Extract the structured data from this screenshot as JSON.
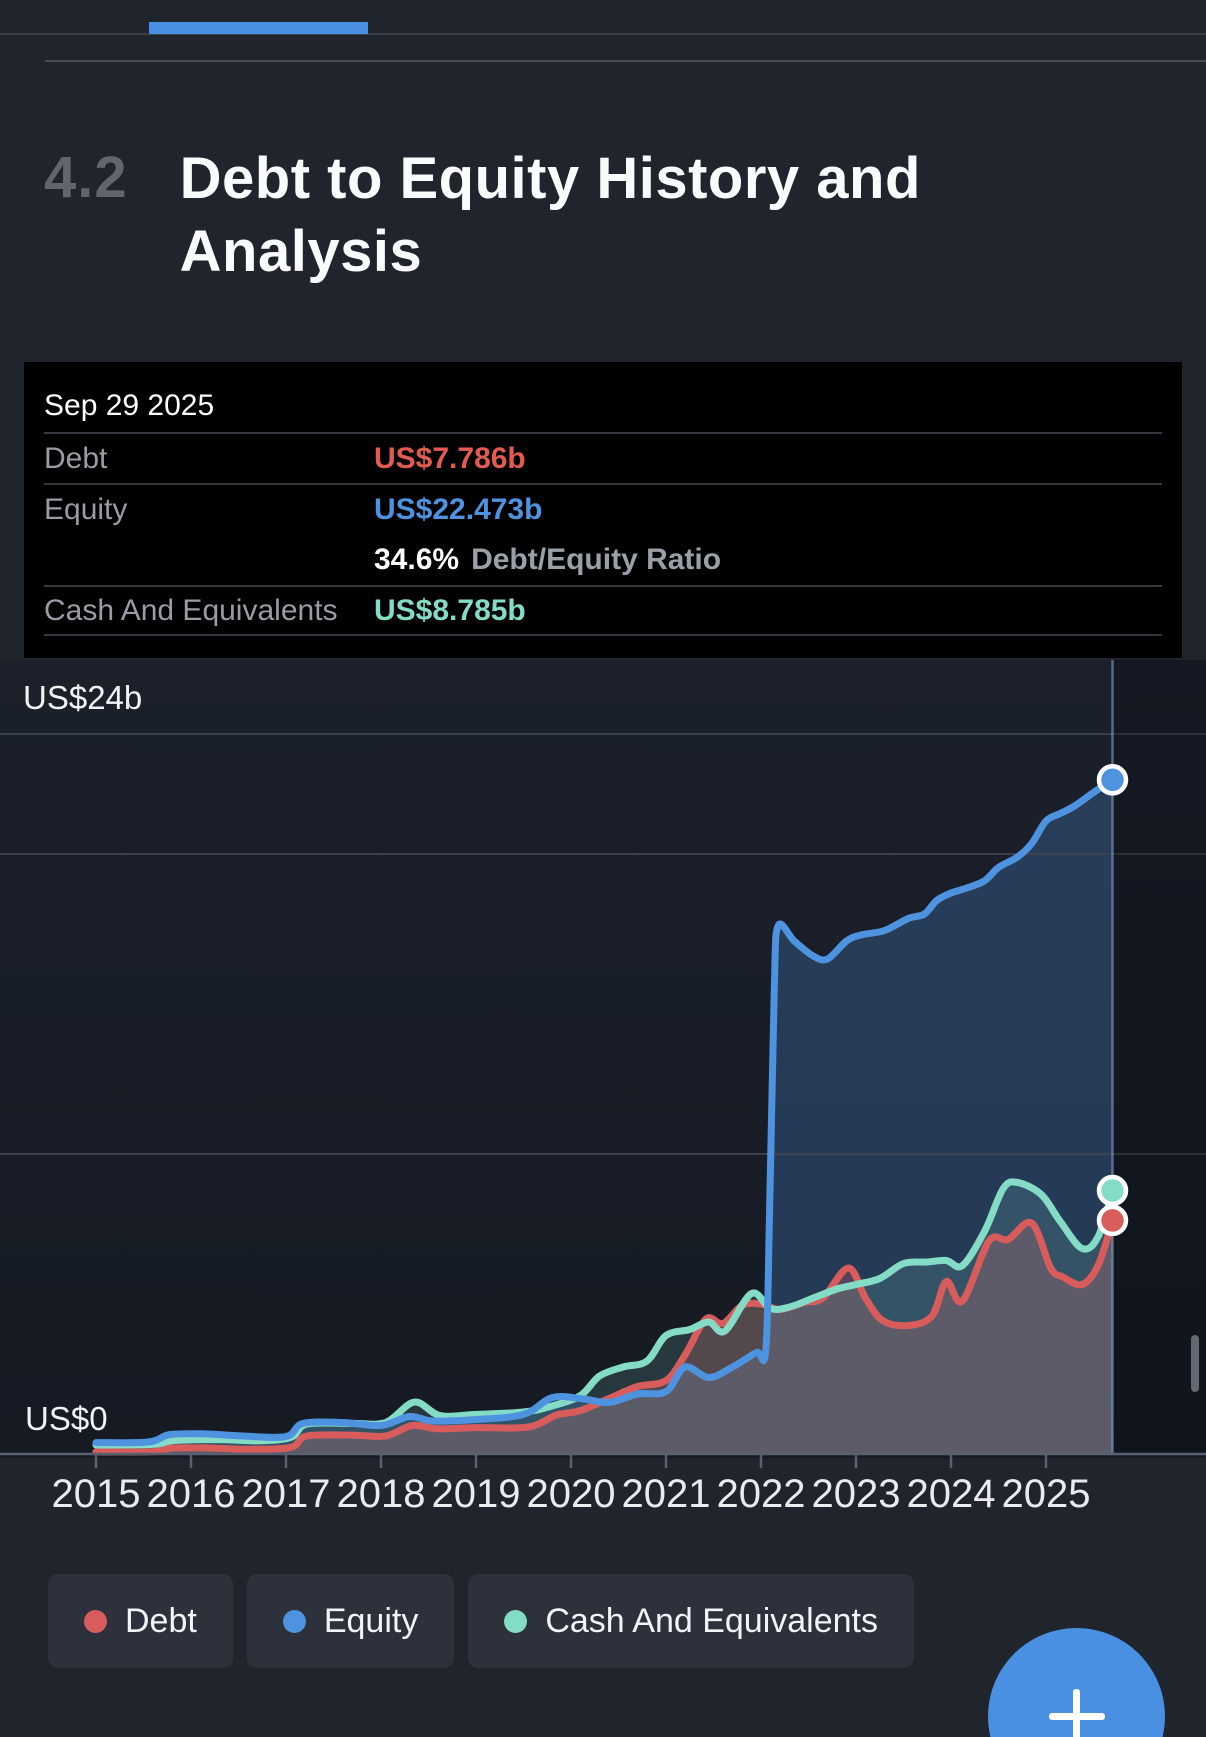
{
  "progress": {
    "color": "#4a90e2"
  },
  "section": {
    "number": "4.2",
    "title": "Debt to Equity History and Analysis"
  },
  "tooltip": {
    "date": "Sep 29 2025",
    "debt": {
      "label": "Debt",
      "value": "US$7.786b",
      "color": "#e25b52"
    },
    "equity": {
      "label": "Equity",
      "value": "US$22.473b",
      "color": "#4e93e0"
    },
    "ratio": {
      "value": "34.6%",
      "label": "Debt/Equity Ratio"
    },
    "cash": {
      "label": "Cash And Equivalents",
      "value": "US$8.785b",
      "color": "#84dcc7"
    }
  },
  "chart_data": {
    "type": "area",
    "title": "Debt to Equity History and Analysis",
    "unit": "US$ billions",
    "x_ticks": [
      "2015",
      "2016",
      "2017",
      "2018",
      "2019",
      "2020",
      "2021",
      "2022",
      "2023",
      "2024",
      "2025"
    ],
    "ylim": [
      0,
      26.5
    ],
    "grid": true,
    "gridline_values_b": [
      24,
      20,
      10
    ],
    "y_axis_labels": {
      "top": "US$24b",
      "zero": "US$0"
    },
    "hover": {
      "date": "Sep 29 2025",
      "x_year": 2025.7
    },
    "legend_position": "bottom",
    "series": [
      {
        "name": "Debt",
        "color": "#d95c5c",
        "fill_alpha": 0.28,
        "end_value_b": 7.786,
        "points": [
          [
            2015.0,
            0.07
          ],
          [
            2015.6,
            0.08
          ],
          [
            2015.8,
            0.2
          ],
          [
            2016.2,
            0.2
          ],
          [
            2016.6,
            0.16
          ],
          [
            2017.05,
            0.22
          ],
          [
            2017.22,
            0.6
          ],
          [
            2017.7,
            0.63
          ],
          [
            2018.05,
            0.6
          ],
          [
            2018.33,
            0.95
          ],
          [
            2018.6,
            0.84
          ],
          [
            2019.0,
            0.88
          ],
          [
            2019.55,
            0.9
          ],
          [
            2019.85,
            1.3
          ],
          [
            2020.1,
            1.45
          ],
          [
            2020.4,
            1.85
          ],
          [
            2020.7,
            2.25
          ],
          [
            2021.0,
            2.45
          ],
          [
            2021.2,
            3.3
          ],
          [
            2021.42,
            4.5
          ],
          [
            2021.6,
            4.35
          ],
          [
            2021.8,
            4.95
          ],
          [
            2022.0,
            5.0
          ],
          [
            2022.2,
            4.82
          ],
          [
            2022.45,
            5.05
          ],
          [
            2022.65,
            5.2
          ],
          [
            2022.92,
            6.2
          ],
          [
            2023.1,
            5.2
          ],
          [
            2023.28,
            4.45
          ],
          [
            2023.55,
            4.28
          ],
          [
            2023.8,
            4.6
          ],
          [
            2023.95,
            5.75
          ],
          [
            2024.12,
            5.1
          ],
          [
            2024.4,
            7.1
          ],
          [
            2024.6,
            7.15
          ],
          [
            2024.85,
            7.7
          ],
          [
            2025.05,
            6.2
          ],
          [
            2025.18,
            5.9
          ],
          [
            2025.38,
            5.65
          ],
          [
            2025.55,
            6.3
          ],
          [
            2025.7,
            7.786
          ]
        ]
      },
      {
        "name": "Equity",
        "color": "#4e93e0",
        "fill_alpha": 0.26,
        "end_value_b": 22.473,
        "points": [
          [
            2015.0,
            0.38
          ],
          [
            2015.55,
            0.4
          ],
          [
            2015.78,
            0.65
          ],
          [
            2016.15,
            0.67
          ],
          [
            2016.55,
            0.6
          ],
          [
            2017.0,
            0.58
          ],
          [
            2017.18,
            1.02
          ],
          [
            2017.6,
            1.05
          ],
          [
            2018.0,
            0.95
          ],
          [
            2018.3,
            1.25
          ],
          [
            2018.55,
            1.1
          ],
          [
            2019.0,
            1.15
          ],
          [
            2019.5,
            1.32
          ],
          [
            2019.8,
            1.88
          ],
          [
            2020.1,
            1.85
          ],
          [
            2020.4,
            1.72
          ],
          [
            2020.7,
            2.0
          ],
          [
            2021.0,
            2.08
          ],
          [
            2021.2,
            2.9
          ],
          [
            2021.45,
            2.55
          ],
          [
            2021.7,
            2.9
          ],
          [
            2021.95,
            3.38
          ],
          [
            2022.05,
            3.45
          ],
          [
            2022.09,
            8.0
          ],
          [
            2022.14,
            15.5
          ],
          [
            2022.18,
            17.6
          ],
          [
            2022.35,
            17.1
          ],
          [
            2022.55,
            16.6
          ],
          [
            2022.7,
            16.5
          ],
          [
            2022.9,
            17.1
          ],
          [
            2023.05,
            17.3
          ],
          [
            2023.3,
            17.45
          ],
          [
            2023.55,
            17.85
          ],
          [
            2023.72,
            18.0
          ],
          [
            2023.85,
            18.45
          ],
          [
            2024.0,
            18.7
          ],
          [
            2024.15,
            18.85
          ],
          [
            2024.35,
            19.1
          ],
          [
            2024.5,
            19.55
          ],
          [
            2024.7,
            19.9
          ],
          [
            2024.85,
            20.35
          ],
          [
            2025.0,
            21.1
          ],
          [
            2025.15,
            21.35
          ],
          [
            2025.3,
            21.6
          ],
          [
            2025.5,
            22.05
          ],
          [
            2025.7,
            22.473
          ]
        ]
      },
      {
        "name": "Cash And Equivalents",
        "color": "#84dcc7",
        "fill_alpha": 0.16,
        "end_value_b": 8.785,
        "points": [
          [
            2015.0,
            0.3
          ],
          [
            2015.6,
            0.32
          ],
          [
            2015.82,
            0.45
          ],
          [
            2016.3,
            0.48
          ],
          [
            2016.7,
            0.44
          ],
          [
            2017.05,
            0.55
          ],
          [
            2017.22,
            1.0
          ],
          [
            2017.7,
            1.02
          ],
          [
            2018.05,
            1.05
          ],
          [
            2018.35,
            1.73
          ],
          [
            2018.62,
            1.28
          ],
          [
            2019.0,
            1.32
          ],
          [
            2019.5,
            1.4
          ],
          [
            2019.8,
            1.6
          ],
          [
            2020.1,
            1.95
          ],
          [
            2020.3,
            2.6
          ],
          [
            2020.55,
            2.9
          ],
          [
            2020.8,
            3.1
          ],
          [
            2021.0,
            3.95
          ],
          [
            2021.25,
            4.15
          ],
          [
            2021.45,
            4.4
          ],
          [
            2021.62,
            4.1
          ],
          [
            2021.9,
            5.35
          ],
          [
            2022.1,
            4.85
          ],
          [
            2022.3,
            4.9
          ],
          [
            2022.55,
            5.2
          ],
          [
            2022.8,
            5.5
          ],
          [
            2023.0,
            5.65
          ],
          [
            2023.25,
            5.85
          ],
          [
            2023.5,
            6.35
          ],
          [
            2023.75,
            6.4
          ],
          [
            2023.95,
            6.45
          ],
          [
            2024.12,
            6.28
          ],
          [
            2024.35,
            7.4
          ],
          [
            2024.55,
            8.85
          ],
          [
            2024.7,
            9.05
          ],
          [
            2024.95,
            8.65
          ],
          [
            2025.15,
            7.75
          ],
          [
            2025.38,
            6.85
          ],
          [
            2025.55,
            7.25
          ],
          [
            2025.7,
            8.785
          ]
        ]
      }
    ]
  },
  "legend": {
    "items": [
      {
        "label": "Debt",
        "color": "#d95c5c"
      },
      {
        "label": "Equity",
        "color": "#4e93e0"
      },
      {
        "label": "Cash And Equivalents",
        "color": "#84dcc7"
      }
    ]
  },
  "fab": {
    "color": "#4a90e2"
  }
}
